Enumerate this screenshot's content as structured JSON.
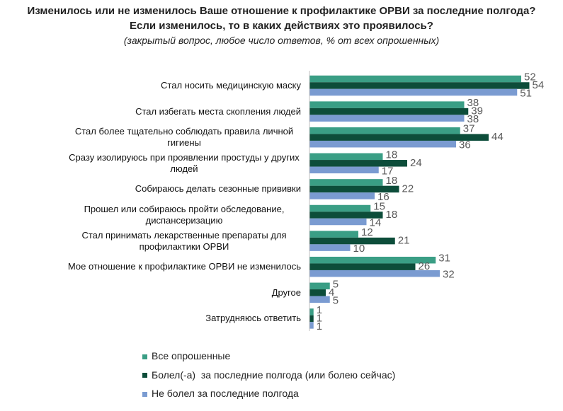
{
  "chart_data": {
    "type": "hbar",
    "title": "Изменилось или не изменилось Ваше отношение к профилактике ОРВИ за последние полгода?",
    "title_line2": "Если изменилось, то в каких действиях это проявилось?",
    "subtitle": "(закрытый вопрос, любое число ответов, % от всех опрошенных)",
    "categories": [
      "Стал носить медицинскую маску",
      "Стал избегать места скопления людей",
      "Стал более тщательно соблюдать правила личной гигиены",
      "Сразу изолируюсь при проявлении простуды у других людей",
      "Собираюсь делать сезонные прививки",
      "Прошел или собираюсь пройти обследование, диспансеризацию",
      "Стал принимать лекарственные препараты для профилактики ОРВИ",
      "Мое отношение к профилактике ОРВИ не изменилось",
      "Другое",
      "Затрудняюсь ответить"
    ],
    "series": [
      {
        "name": "Все опрошенные",
        "color": "#3a9e85",
        "values": [
          52,
          38,
          37,
          18,
          18,
          15,
          12,
          31,
          5,
          1
        ]
      },
      {
        "name": "Болел(-а)  за последние полгода (или болею сейчас)",
        "color": "#0d4d3a",
        "values": [
          54,
          39,
          44,
          24,
          22,
          18,
          21,
          26,
          4,
          1
        ]
      },
      {
        "name": "Не болел за последние полгода",
        "color": "#7a9bd1",
        "values": [
          51,
          38,
          36,
          17,
          16,
          14,
          10,
          32,
          5,
          1
        ]
      }
    ]
  }
}
